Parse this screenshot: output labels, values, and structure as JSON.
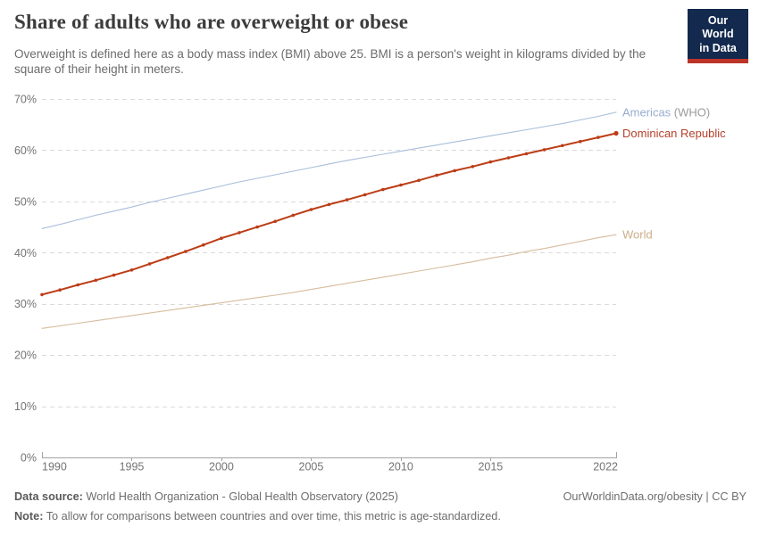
{
  "header": {
    "title": "Share of adults who are overweight or obese",
    "subtitle": "Overweight is defined here as a body mass index (BMI) above 25. BMI is a person's weight in kilograms divided by the square of their height in meters.",
    "logo": {
      "line1": "Our World",
      "line2": "in Data",
      "bg_color": "#13294d",
      "bar_color": "#bc3428"
    }
  },
  "chart_data": {
    "type": "line",
    "title": "Share of adults who are overweight or obese",
    "xlabel": "",
    "ylabel": "",
    "xlim": [
      1990,
      2022
    ],
    "ylim": [
      0,
      70
    ],
    "grid": "horizontal-dashed",
    "legend_position": "right-of-line-ends",
    "yticks": [
      0,
      10,
      20,
      30,
      40,
      50,
      60,
      70
    ],
    "ytick_suffix": "%",
    "xticks": [
      1990,
      1995,
      2000,
      2005,
      2010,
      2015,
      2022
    ],
    "x": [
      1990,
      1991,
      1992,
      1993,
      1994,
      1995,
      1996,
      1997,
      1998,
      1999,
      2000,
      2001,
      2002,
      2003,
      2004,
      2005,
      2006,
      2007,
      2008,
      2009,
      2010,
      2011,
      2012,
      2013,
      2014,
      2015,
      2016,
      2017,
      2018,
      2019,
      2020,
      2021,
      2022
    ],
    "series": [
      {
        "name": "Americas (WHO)",
        "label_main": "Americas",
        "label_suffix": " (WHO)",
        "color": "#a9bedb",
        "label_color": "#97accf",
        "suffix_color": "#9b9b9b",
        "line_width": 1.1,
        "markers": false,
        "values": [
          44.7,
          45.5,
          46.4,
          47.3,
          48.1,
          48.9,
          49.8,
          50.6,
          51.4,
          52.2,
          53.0,
          53.8,
          54.5,
          55.2,
          55.9,
          56.6,
          57.3,
          58.0,
          58.6,
          59.2,
          59.8,
          60.4,
          61.0,
          61.6,
          62.2,
          62.8,
          63.4,
          64.0,
          64.6,
          65.2,
          65.9,
          66.6,
          67.4
        ]
      },
      {
        "name": "Dominican Republic",
        "label_main": "Dominican Republic",
        "label_suffix": "",
        "color": "#bc3d16",
        "label_color": "#b5402a",
        "suffix_color": "#9b9b9b",
        "line_width": 2,
        "markers": true,
        "values": [
          31.8,
          32.7,
          33.7,
          34.6,
          35.6,
          36.6,
          37.8,
          39.0,
          40.2,
          41.5,
          42.8,
          43.9,
          45.0,
          46.1,
          47.3,
          48.4,
          49.4,
          50.3,
          51.3,
          52.3,
          53.2,
          54.1,
          55.1,
          56.0,
          56.8,
          57.7,
          58.5,
          59.3,
          60.1,
          60.9,
          61.7,
          62.5,
          63.3
        ]
      },
      {
        "name": "World",
        "label_main": "World",
        "label_suffix": "",
        "color": "#d6bd9e",
        "label_color": "#ccae89",
        "suffix_color": "#9b9b9b",
        "line_width": 1.1,
        "markers": false,
        "values": [
          25.2,
          25.7,
          26.2,
          26.7,
          27.2,
          27.7,
          28.2,
          28.7,
          29.2,
          29.7,
          30.2,
          30.7,
          31.2,
          31.7,
          32.2,
          32.8,
          33.4,
          34.0,
          34.6,
          35.2,
          35.8,
          36.4,
          37.0,
          37.6,
          38.2,
          38.9,
          39.5,
          40.2,
          40.8,
          41.5,
          42.2,
          42.9,
          43.5
        ]
      }
    ],
    "axis_color": "#a3a3a3",
    "gridline_color": "#dadada",
    "tick_label_color": "#737373"
  },
  "footer": {
    "datasource_label": "Data source:",
    "datasource_text": " World Health Organization - Global Health Observatory (2025)",
    "note_label": "Note:",
    "note_text": " To allow for comparisons between countries and over time, this metric is age-standardized.",
    "rights": "OurWorldinData.org/obesity | CC BY"
  }
}
